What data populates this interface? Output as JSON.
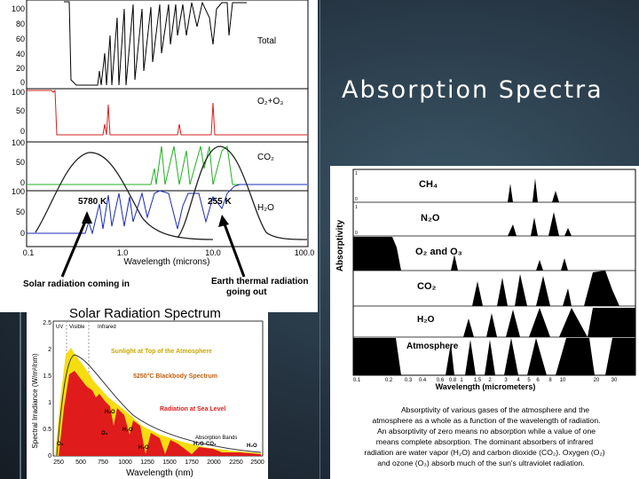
{
  "slide": {
    "title": "Absorption Spectra"
  },
  "top_left_figure": {
    "x_label": "Wavelength (microns)",
    "x_ticks": [
      "0.1",
      "1.0",
      "10.0",
      "100.0"
    ],
    "panels": [
      {
        "label": "Total",
        "ticks": [
          "100",
          "80",
          "60",
          "40",
          "20",
          "0"
        ]
      },
      {
        "label": "O₂+O₃",
        "ticks": [
          "100",
          "50",
          "0"
        ]
      },
      {
        "label": "CO₂",
        "ticks": [
          "100",
          "50",
          "0"
        ]
      },
      {
        "label": "H₂O",
        "ticks": [
          "100",
          "50",
          "0"
        ]
      }
    ],
    "curve_labels": {
      "sun": "5780 K",
      "earth": "255 K"
    },
    "captions": {
      "solar": "Solar radiation coming in",
      "earth_line1": "Earth thermal radiation",
      "earth_line2": "going out"
    },
    "colors": {
      "total": "#000000",
      "o2o3": "#d62020",
      "co2": "#20b020",
      "h2o": "#1a2ab8",
      "plank": "#222222"
    }
  },
  "bottom_left_figure": {
    "title": "Solar Radiation Spectrum",
    "y_label": "Spectral Irradiance (W/m²/nm)",
    "x_label": "Wavelength (nm)",
    "x_ticks": [
      "250",
      "500",
      "750",
      "1000",
      "1250",
      "1500",
      "1750",
      "2000",
      "2250",
      "2500"
    ],
    "y_ticks": [
      "2.5",
      "2",
      "1.5",
      "1",
      "0.5",
      "0"
    ],
    "bands": [
      "UV",
      "Visible",
      "Infrared"
    ],
    "legend": {
      "top": "Sunlight at Top of the Atmosphere",
      "blackbody": "5250°C Blackbody Spectrum",
      "sea": "Radiation at Sea Level",
      "absorption": "Absorption Bands"
    },
    "molecules": [
      "H₂O",
      "O₂",
      "H₂O",
      "H₂O",
      "H₂O",
      "CO₂",
      "H₂O",
      "O₃"
    ],
    "colors": {
      "top": "#f5dd10",
      "sea": "#e01b1b",
      "blackbody": "#333333"
    }
  },
  "right_figure": {
    "y_label": "Absorptivity",
    "gases": [
      "CH₄",
      "N₂O",
      "O₂ and O₃",
      "CO₂",
      "H₂O",
      "Atmosphere"
    ],
    "x_ticks": [
      "0.1",
      "0.2",
      "0.3",
      "0.4",
      "0.6",
      "0.8",
      "1",
      "1.5",
      "2",
      "3",
      "4",
      "5",
      "6",
      "8",
      "10",
      "20",
      "30"
    ],
    "x_label": "Wavelength (micrometers)",
    "caption": [
      "Absorptivity of various gases of the atmosphere and the",
      "atmosphere as a whole as a function of the wavelength of radiation.",
      "An absorptivity of zero means no absorption while a value of one",
      "means complete absorption. The dominant absorbers of infrared",
      "radiation are water vapor (H₂O) and carbon dioxide (CO₂). Oxygen (O₂)",
      "and ozone (O₃) absorb much of the sun's ultraviolet radiation."
    ]
  }
}
